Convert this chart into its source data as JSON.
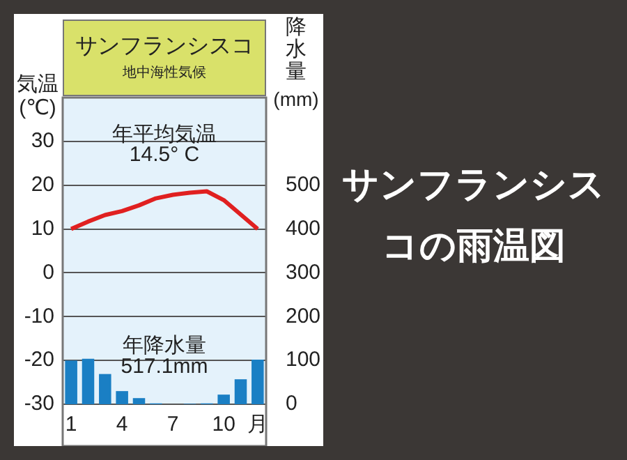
{
  "chart_data": {
    "type": "bar",
    "title": "サンフランシスコの雨温図",
    "subtitle": "サンフランシスコ",
    "ylabel": "気温\n(℃)",
    "y2label": "降水量\n(mm)",
    "annotations": [
      "地中海性気候",
      "年平均気温\n14.5° C",
      "年降水量\n517.1mm"
    ],
    "categories": [
      "1",
      null,
      null,
      "4",
      null,
      null,
      "7",
      null,
      null,
      "10",
      null,
      "月"
    ],
    "series": [
      {
        "axis": "y2",
        "color": "#1a7fc4",
        "values": [
          100,
          104,
          69,
          30,
          14,
          2,
          0,
          1,
          2,
          22,
          57,
          102
        ]
      },
      {
        "type": "line",
        "color": "#e02020",
        "marker": "none",
        "values": [
          10.0,
          11.7,
          13.2,
          14.1,
          15.4,
          17.0,
          17.8,
          18.3,
          18.6,
          16.6,
          13.3,
          10.0
        ]
      }
    ],
    "ylim": [
      -30,
      40
    ],
    "yticks": [
      -30,
      -20,
      -10,
      0,
      10,
      20,
      30
    ],
    "y2lim": [
      0,
      700
    ],
    "y2ticks": [
      0,
      100,
      200,
      300,
      400,
      500
    ],
    "grid": "y",
    "legend": false
  }
}
